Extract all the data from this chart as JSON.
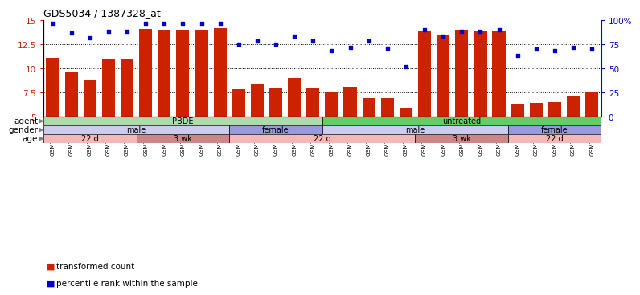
{
  "title": "GDS5034 / 1387328_at",
  "samples": [
    "GSM796783",
    "GSM796784",
    "GSM796785",
    "GSM796786",
    "GSM796787",
    "GSM796806",
    "GSM796807",
    "GSM796808",
    "GSM796809",
    "GSM796810",
    "GSM796796",
    "GSM796797",
    "GSM796798",
    "GSM796799",
    "GSM796800",
    "GSM796781",
    "GSM796788",
    "GSM796789",
    "GSM796790",
    "GSM796791",
    "GSM796801",
    "GSM796802",
    "GSM796803",
    "GSM796804",
    "GSM796805",
    "GSM796782",
    "GSM796792",
    "GSM796793",
    "GSM796794",
    "GSM796795"
  ],
  "bar_values": [
    11.1,
    9.6,
    8.8,
    11.0,
    11.0,
    14.1,
    14.0,
    14.0,
    14.0,
    14.2,
    7.8,
    8.3,
    7.9,
    9.0,
    7.9,
    7.5,
    8.1,
    6.9,
    6.9,
    5.9,
    13.8,
    13.5,
    14.0,
    13.9,
    13.9,
    6.3,
    6.4,
    6.5,
    7.2,
    7.5
  ],
  "dot_values": [
    97,
    87,
    82,
    88,
    88,
    97,
    97,
    97,
    97,
    97,
    75,
    78,
    75,
    83,
    78,
    68,
    72,
    78,
    71,
    52,
    90,
    83,
    88,
    88,
    90,
    63,
    70,
    68,
    72,
    70
  ],
  "ylim": [
    5,
    15
  ],
  "yticks": [
    5,
    7.5,
    10,
    12.5,
    15
  ],
  "ytick_labels": [
    "5",
    "7.5",
    "10",
    "12.5",
    "15"
  ],
  "right_yticks": [
    0,
    25,
    50,
    75,
    100
  ],
  "right_ytick_labels": [
    "0",
    "25",
    "50",
    "75",
    "100%"
  ],
  "bar_color": "#cc2200",
  "dot_color": "#0000cc",
  "agent_groups": [
    {
      "label": "PBDE",
      "start": 0,
      "end": 15,
      "color": "#aaddaa"
    },
    {
      "label": "untreated",
      "start": 15,
      "end": 30,
      "color": "#66cc66"
    }
  ],
  "gender_groups": [
    {
      "label": "male",
      "start": 0,
      "end": 10,
      "color": "#ccccee"
    },
    {
      "label": "female",
      "start": 10,
      "end": 15,
      "color": "#9999dd"
    },
    {
      "label": "male",
      "start": 15,
      "end": 25,
      "color": "#ccccee"
    },
    {
      "label": "female",
      "start": 25,
      "end": 30,
      "color": "#9999dd"
    }
  ],
  "age_groups": [
    {
      "label": "22 d",
      "start": 0,
      "end": 5,
      "color": "#f5b8b8"
    },
    {
      "label": "3 wk",
      "start": 5,
      "end": 10,
      "color": "#cc8888"
    },
    {
      "label": "22 d",
      "start": 10,
      "end": 20,
      "color": "#f5b8b8"
    },
    {
      "label": "3 wk",
      "start": 20,
      "end": 25,
      "color": "#cc8888"
    },
    {
      "label": "22 d",
      "start": 25,
      "end": 30,
      "color": "#f5b8b8"
    }
  ],
  "legend_items": [
    {
      "label": "transformed count",
      "color": "#cc2200"
    },
    {
      "label": "percentile rank within the sample",
      "color": "#0000cc"
    }
  ],
  "grid_lines": [
    7.5,
    10.0,
    12.5
  ]
}
